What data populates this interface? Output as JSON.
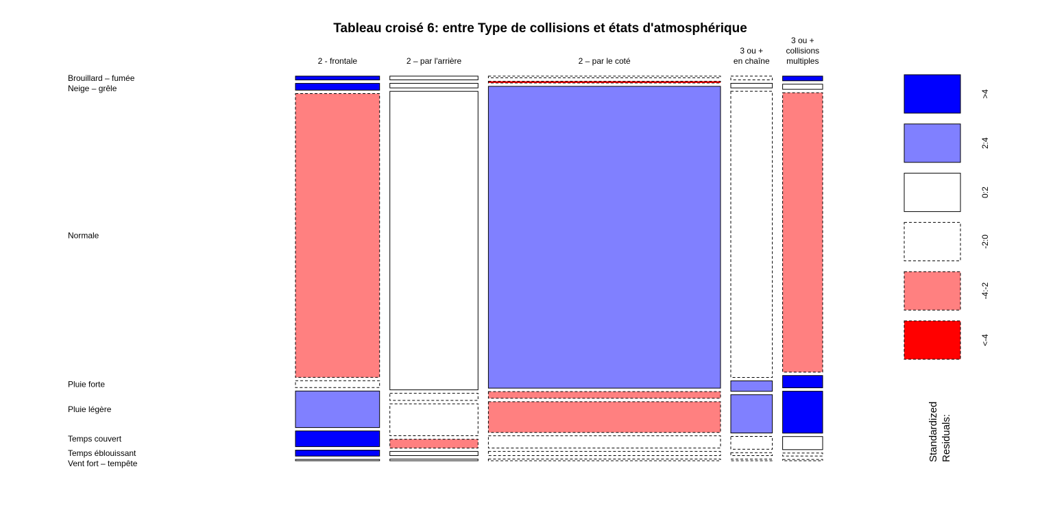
{
  "chart_data": {
    "type": "mosaic",
    "title": "Tableau croisé 6: entre Type de collisions et états d'atmosphérique",
    "columns": [
      {
        "label_lines": [
          "2 - frontale"
        ]
      },
      {
        "label_lines": [
          "2 – par l'arrière"
        ]
      },
      {
        "label_lines": [
          "2 – par le coté"
        ]
      },
      {
        "label_lines": [
          "3 ou +",
          "en chaîne"
        ]
      },
      {
        "label_lines": [
          "3 ou +",
          "collisions",
          "multiples"
        ]
      }
    ],
    "column_shares": [
      0.166,
      0.174,
      0.458,
      0.082,
      0.079
    ],
    "rows": [
      "Brouillard – fumée",
      "Neige – grêle",
      "Normale",
      "Pluie forte",
      "Pluie légère",
      "Temps couvert",
      "Temps éblouissant",
      "Vent fort – tempête"
    ],
    "row_shares": [
      [
        0.009,
        0.016,
        0.668,
        0.016,
        0.086,
        0.037,
        0.014,
        0.003
      ],
      [
        0.009,
        0.011,
        0.711,
        0.017,
        0.076,
        0.021,
        0.01,
        0.004
      ],
      [
        0.004,
        0.004,
        0.718,
        0.016,
        0.073,
        0.029,
        0.01,
        0.004
      ],
      [
        0.009,
        0.011,
        0.688,
        0.025,
        0.092,
        0.031,
        0.007,
        0.004
      ],
      [
        0.011,
        0.012,
        0.66,
        0.029,
        0.099,
        0.031,
        0.007,
        0.003
      ]
    ],
    "residual_class": [
      [
        ">4",
        ">4",
        "-4:-2",
        "-2:0",
        "2:4",
        ">4",
        ">4",
        "0:2"
      ],
      [
        "0:2",
        "0:2",
        "0:2",
        "-2:0",
        "-2:0",
        "-4:-2",
        "0:2",
        "0:2"
      ],
      [
        "-2:0",
        "<-4",
        "2:4",
        "-4:-2",
        "-4:-2",
        "-2:0",
        "-2:0",
        "-2:0"
      ],
      [
        "-2:0",
        "0:2",
        "-2:0",
        "2:4",
        "2:4",
        "-2:0",
        "-2:0",
        "-2:0"
      ],
      [
        ">4",
        "0:2",
        "-4:-2",
        ">4",
        ">4",
        "0:2",
        "-2:0",
        "-2:0"
      ]
    ],
    "legend": {
      "title_lines": [
        "Standardized",
        "Residuals:"
      ],
      "items": [
        {
          "label": ">4",
          "fill": "#0000FF",
          "dashed": false
        },
        {
          "label": "2:4",
          "fill": "#8080FF",
          "dashed": false
        },
        {
          "label": "0:2",
          "fill": "#FFFFFF",
          "dashed": false
        },
        {
          "label": "-2:0",
          "fill": "#FFFFFF",
          "dashed": true
        },
        {
          "label": "-4:-2",
          "fill": "#FF8080",
          "dashed": true
        },
        {
          "label": "<-4",
          "fill": "#FF0000",
          "dashed": true
        }
      ]
    }
  }
}
